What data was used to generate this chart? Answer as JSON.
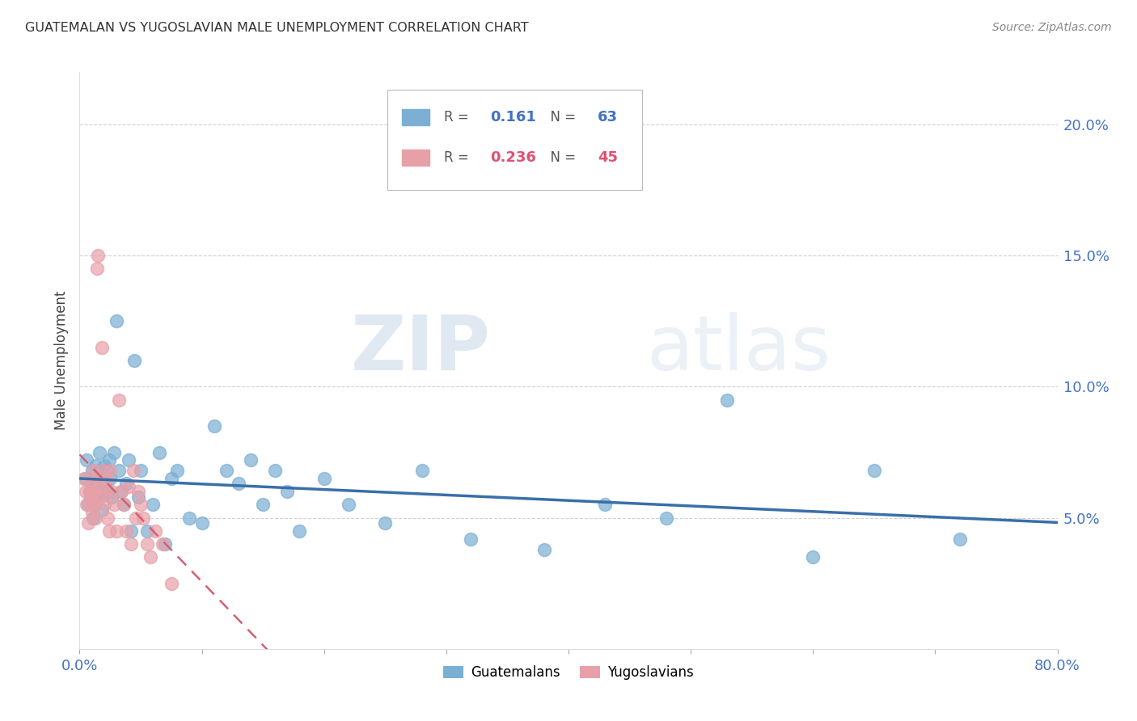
{
  "title": "GUATEMALAN VS YUGOSLAVIAN MALE UNEMPLOYMENT CORRELATION CHART",
  "source": "Source: ZipAtlas.com",
  "ylabel": "Male Unemployment",
  "xlim": [
    0.0,
    0.8
  ],
  "ylim": [
    0.0,
    0.22
  ],
  "yticks": [
    0.05,
    0.1,
    0.15,
    0.2
  ],
  "ytick_labels": [
    "5.0%",
    "10.0%",
    "15.0%",
    "20.0%"
  ],
  "xticks": [
    0.0,
    0.1,
    0.2,
    0.3,
    0.4,
    0.5,
    0.6,
    0.7,
    0.8
  ],
  "xtick_labels": [
    "0.0%",
    "",
    "",
    "",
    "",
    "",
    "",
    "",
    "80.0%"
  ],
  "guatemalan_color": "#7bafd4",
  "yugoslavian_color": "#e8a0a8",
  "trend_blue_color": "#3a6fa8",
  "trend_pink_color": "#d46070",
  "R_guatemalan": "0.161",
  "N_guatemalan": "63",
  "R_yugoslavian": "0.236",
  "N_yugoslavian": "45",
  "legend_label_guatemalan": "Guatemalans",
  "legend_label_yugoslavian": "Yugoslavians",
  "guatemalan_x": [
    0.005,
    0.006,
    0.007,
    0.008,
    0.009,
    0.01,
    0.01,
    0.011,
    0.012,
    0.013,
    0.014,
    0.015,
    0.016,
    0.016,
    0.017,
    0.018,
    0.019,
    0.02,
    0.021,
    0.022,
    0.023,
    0.024,
    0.025,
    0.026,
    0.028,
    0.03,
    0.032,
    0.034,
    0.036,
    0.038,
    0.04,
    0.042,
    0.045,
    0.048,
    0.05,
    0.055,
    0.06,
    0.065,
    0.07,
    0.075,
    0.08,
    0.09,
    0.1,
    0.11,
    0.12,
    0.13,
    0.14,
    0.15,
    0.16,
    0.17,
    0.18,
    0.2,
    0.22,
    0.25,
    0.28,
    0.32,
    0.38,
    0.43,
    0.48,
    0.53,
    0.6,
    0.65,
    0.72
  ],
  "guatemalan_y": [
    0.065,
    0.072,
    0.055,
    0.06,
    0.058,
    0.063,
    0.068,
    0.05,
    0.055,
    0.07,
    0.062,
    0.058,
    0.075,
    0.06,
    0.068,
    0.053,
    0.065,
    0.07,
    0.063,
    0.068,
    0.06,
    0.072,
    0.065,
    0.058,
    0.075,
    0.125,
    0.068,
    0.06,
    0.055,
    0.063,
    0.072,
    0.045,
    0.11,
    0.058,
    0.068,
    0.045,
    0.055,
    0.075,
    0.04,
    0.065,
    0.068,
    0.05,
    0.048,
    0.085,
    0.068,
    0.063,
    0.072,
    0.055,
    0.068,
    0.06,
    0.045,
    0.065,
    0.055,
    0.048,
    0.068,
    0.042,
    0.038,
    0.055,
    0.05,
    0.095,
    0.035,
    0.068,
    0.042
  ],
  "yugoslavian_x": [
    0.004,
    0.005,
    0.006,
    0.007,
    0.008,
    0.009,
    0.009,
    0.01,
    0.01,
    0.011,
    0.012,
    0.012,
    0.013,
    0.014,
    0.015,
    0.015,
    0.016,
    0.017,
    0.018,
    0.019,
    0.02,
    0.021,
    0.022,
    0.023,
    0.024,
    0.025,
    0.026,
    0.028,
    0.03,
    0.032,
    0.034,
    0.036,
    0.038,
    0.04,
    0.042,
    0.044,
    0.046,
    0.048,
    0.05,
    0.052,
    0.055,
    0.058,
    0.062,
    0.068,
    0.075
  ],
  "yugoslavian_y": [
    0.065,
    0.06,
    0.055,
    0.048,
    0.06,
    0.063,
    0.058,
    0.055,
    0.052,
    0.068,
    0.06,
    0.055,
    0.05,
    0.145,
    0.15,
    0.065,
    0.062,
    0.058,
    0.115,
    0.068,
    0.055,
    0.06,
    0.065,
    0.05,
    0.045,
    0.068,
    0.06,
    0.055,
    0.045,
    0.095,
    0.06,
    0.055,
    0.045,
    0.062,
    0.04,
    0.068,
    0.05,
    0.06,
    0.055,
    0.05,
    0.04,
    0.035,
    0.045,
    0.04,
    0.025
  ],
  "watermark_zip": "ZIP",
  "watermark_atlas": "atlas",
  "background_color": "#ffffff"
}
